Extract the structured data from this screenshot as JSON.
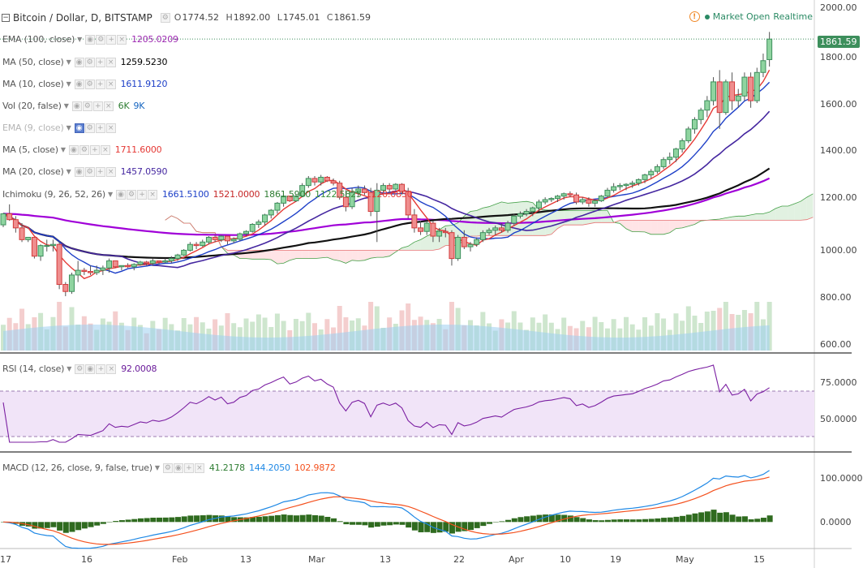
{
  "header": {
    "symbol": "Bitcoin / Dollar, D, BITSTAMP",
    "ohlc": {
      "o_label": "O",
      "o": "1774.52",
      "h_label": "H",
      "h": "1892.00",
      "l_label": "L",
      "l": "1745.01",
      "c_label": "C",
      "c": "1861.59"
    },
    "market_status": "Market Open",
    "data_mode": "Realtime",
    "warning_glyph": "!"
  },
  "indicators": [
    {
      "name": "EMA (100, close)",
      "values": [
        "1205.0209"
      ],
      "colors": [
        "#9c27b0"
      ],
      "faded": false,
      "active": false
    },
    {
      "name": "MA (50, close)",
      "values": [
        "1259.5230"
      ],
      "colors": [
        "#000000"
      ],
      "faded": false,
      "active": false
    },
    {
      "name": "MA (10, close)",
      "values": [
        "1611.9120"
      ],
      "colors": [
        "#1e40c8"
      ],
      "faded": false,
      "active": false
    },
    {
      "name": "Vol (20, false)",
      "values": [
        "6K",
        "9K"
      ],
      "colors": [
        "#2e7d32",
        "#1565c0"
      ],
      "faded": false,
      "active": false
    },
    {
      "name": "EMA (9, close)",
      "values": [],
      "colors": [],
      "faded": true,
      "active": true
    },
    {
      "name": "MA (5, close)",
      "values": [
        "1711.6000"
      ],
      "colors": [
        "#e53935"
      ],
      "faded": false,
      "active": false
    },
    {
      "name": "MA (20, close)",
      "values": [
        "1457.0590"
      ],
      "colors": [
        "#4527a0"
      ],
      "faded": false,
      "active": false
    },
    {
      "name": "Ichimoku (9, 26, 52, 26)",
      "values": [
        "1661.5100",
        "1521.0000",
        "1861.5900",
        "1122.5825",
        "1120.0850"
      ],
      "colors": [
        "#1e40c8",
        "#c62828",
        "#2e7d32",
        "#388e3c",
        "#e53935"
      ],
      "faded": false,
      "active": false
    }
  ],
  "rsi_legend": {
    "name": "RSI (14, close)",
    "value": "92.0008",
    "color": "#6a1b9a"
  },
  "macd_legend": {
    "name": "MACD (12, 26, close, 9, false, true)",
    "values": [
      "41.2178",
      "144.2050",
      "102.9872"
    ],
    "colors": [
      "#2e7d32",
      "#1e88e5",
      "#f4511e"
    ]
  },
  "price_axis_labels": [
    "2000.00",
    "1800.00",
    "1600.00",
    "1400.00",
    "1200.00",
    "1000.00",
    "800.00",
    "600.00"
  ],
  "last_price_tag": "1861.59",
  "rsi_axis_labels": [
    "75.0000",
    "50.0000"
  ],
  "macd_axis_labels": [
    "100.0000",
    "0.0000"
  ],
  "time_axis_labels": [
    "17",
    "16",
    "Feb",
    "13",
    "Mar",
    "13",
    "22",
    "Apr",
    "10",
    "19",
    "May",
    "15"
  ],
  "colors": {
    "up": "#3d8f5c",
    "down": "#d23b3b",
    "rsi_band": "#f1e4f8",
    "cloud_green": "#c8e6c9",
    "cloud_red": "#ffcdd2",
    "vol_ma": "#9fd0f0"
  },
  "chart_data": {
    "type": "candlestick",
    "title": "Bitcoin / Dollar, D, BITSTAMP",
    "ylim": [
      560,
      2000
    ],
    "candles": [
      [
        1073,
        1123,
        1063,
        1120
      ],
      [
        1120,
        1160,
        1090,
        1095
      ],
      [
        1095,
        1110,
        1040,
        1060
      ],
      [
        1060,
        1080,
        1000,
        1010
      ],
      [
        1010,
        1020,
        1000,
        1020
      ],
      [
        1020,
        1020,
        930,
        940
      ],
      [
        940,
        990,
        920,
        985
      ],
      [
        985,
        1010,
        960,
        985
      ],
      [
        985,
        1010,
        960,
        990
      ],
      [
        990,
        1000,
        800,
        820
      ],
      [
        820,
        830,
        770,
        790
      ],
      [
        790,
        870,
        780,
        860
      ],
      [
        860,
        920,
        830,
        880
      ],
      [
        880,
        890,
        860,
        875
      ],
      [
        875,
        900,
        860,
        870
      ],
      [
        870,
        900,
        860,
        880
      ],
      [
        880,
        900,
        860,
        890
      ],
      [
        890,
        930,
        870,
        920
      ],
      [
        920,
        920,
        890,
        895
      ],
      [
        895,
        900,
        880,
        900
      ],
      [
        900,
        910,
        890,
        895
      ],
      [
        895,
        910,
        880,
        905
      ],
      [
        905,
        920,
        900,
        915
      ],
      [
        915,
        920,
        900,
        910
      ],
      [
        910,
        930,
        900,
        920
      ],
      [
        920,
        920,
        905,
        915
      ],
      [
        915,
        930,
        910,
        920
      ],
      [
        920,
        940,
        910,
        930
      ],
      [
        930,
        950,
        920,
        945
      ],
      [
        945,
        970,
        940,
        965
      ],
      [
        965,
        1000,
        960,
        990
      ],
      [
        990,
        1000,
        970,
        985
      ],
      [
        985,
        1010,
        980,
        1000
      ],
      [
        1000,
        1025,
        990,
        1020
      ],
      [
        1020,
        1030,
        1000,
        1010
      ],
      [
        1010,
        1030,
        1000,
        1025
      ],
      [
        1025,
        1025,
        990,
        1005
      ],
      [
        1005,
        1020,
        995,
        1012
      ],
      [
        1012,
        1040,
        1005,
        1035
      ],
      [
        1035,
        1050,
        1025,
        1045
      ],
      [
        1045,
        1080,
        1040,
        1075
      ],
      [
        1075,
        1095,
        1060,
        1085
      ],
      [
        1085,
        1120,
        1070,
        1115
      ],
      [
        1115,
        1140,
        1100,
        1135
      ],
      [
        1135,
        1170,
        1120,
        1165
      ],
      [
        1165,
        1200,
        1150,
        1195
      ],
      [
        1195,
        1195,
        1170,
        1175
      ],
      [
        1175,
        1200,
        1170,
        1195
      ],
      [
        1195,
        1250,
        1190,
        1240
      ],
      [
        1240,
        1280,
        1230,
        1270
      ],
      [
        1270,
        1280,
        1240,
        1255
      ],
      [
        1255,
        1285,
        1240,
        1275
      ],
      [
        1275,
        1280,
        1255,
        1260
      ],
      [
        1260,
        1270,
        1240,
        1250
      ],
      [
        1250,
        1260,
        1180,
        1190
      ],
      [
        1190,
        1220,
        1130,
        1150
      ],
      [
        1150,
        1230,
        1140,
        1210
      ],
      [
        1210,
        1240,
        1190,
        1225
      ],
      [
        1225,
        1240,
        1200,
        1210
      ],
      [
        1210,
        1230,
        1110,
        1130
      ],
      [
        1130,
        1250,
        1000,
        1220
      ],
      [
        1220,
        1250,
        1200,
        1240
      ],
      [
        1240,
        1250,
        1210,
        1225
      ],
      [
        1225,
        1250,
        1220,
        1245
      ],
      [
        1245,
        1250,
        1200,
        1215
      ],
      [
        1215,
        1230,
        1100,
        1115
      ],
      [
        1115,
        1140,
        1040,
        1060
      ],
      [
        1060,
        1090,
        1030,
        1045
      ],
      [
        1045,
        1090,
        1030,
        1080
      ],
      [
        1080,
        1090,
        1000,
        1025
      ],
      [
        1025,
        1060,
        1000,
        1045
      ],
      [
        1045,
        1060,
        1020,
        1040
      ],
      [
        1040,
        1050,
        900,
        930
      ],
      [
        930,
        1030,
        920,
        1020
      ],
      [
        1020,
        1050,
        970,
        980
      ],
      [
        980,
        1000,
        960,
        990
      ],
      [
        990,
        1020,
        980,
        1010
      ],
      [
        1010,
        1050,
        1000,
        1040
      ],
      [
        1040,
        1060,
        1030,
        1050
      ],
      [
        1050,
        1070,
        1030,
        1060
      ],
      [
        1060,
        1080,
        1040,
        1050
      ],
      [
        1050,
        1090,
        1040,
        1080
      ],
      [
        1080,
        1120,
        1070,
        1110
      ],
      [
        1110,
        1130,
        1100,
        1120
      ],
      [
        1120,
        1140,
        1110,
        1130
      ],
      [
        1130,
        1150,
        1110,
        1145
      ],
      [
        1145,
        1180,
        1130,
        1170
      ],
      [
        1170,
        1190,
        1160,
        1180
      ],
      [
        1180,
        1190,
        1170,
        1185
      ],
      [
        1185,
        1200,
        1170,
        1195
      ],
      [
        1195,
        1210,
        1180,
        1205
      ],
      [
        1205,
        1215,
        1190,
        1200
      ],
      [
        1200,
        1210,
        1160,
        1170
      ],
      [
        1170,
        1190,
        1160,
        1180
      ],
      [
        1180,
        1190,
        1150,
        1165
      ],
      [
        1165,
        1180,
        1150,
        1175
      ],
      [
        1175,
        1200,
        1170,
        1195
      ],
      [
        1195,
        1230,
        1190,
        1220
      ],
      [
        1220,
        1250,
        1210,
        1235
      ],
      [
        1235,
        1250,
        1220,
        1240
      ],
      [
        1240,
        1250,
        1220,
        1245
      ],
      [
        1245,
        1260,
        1230,
        1250
      ],
      [
        1250,
        1270,
        1240,
        1265
      ],
      [
        1265,
        1290,
        1250,
        1285
      ],
      [
        1285,
        1310,
        1270,
        1300
      ],
      [
        1300,
        1330,
        1290,
        1320
      ],
      [
        1320,
        1360,
        1310,
        1350
      ],
      [
        1350,
        1380,
        1330,
        1360
      ],
      [
        1360,
        1400,
        1340,
        1395
      ],
      [
        1395,
        1440,
        1380,
        1430
      ],
      [
        1430,
        1490,
        1420,
        1480
      ],
      [
        1480,
        1530,
        1460,
        1520
      ],
      [
        1520,
        1570,
        1500,
        1560
      ],
      [
        1560,
        1620,
        1530,
        1600
      ],
      [
        1600,
        1700,
        1580,
        1680
      ],
      [
        1680,
        1730,
        1480,
        1550
      ],
      [
        1550,
        1690,
        1540,
        1680
      ],
      [
        1680,
        1720,
        1560,
        1600
      ],
      [
        1600,
        1650,
        1570,
        1620
      ],
      [
        1620,
        1720,
        1600,
        1700
      ],
      [
        1700,
        1720,
        1570,
        1600
      ],
      [
        1600,
        1740,
        1590,
        1720
      ],
      [
        1720,
        1800,
        1700,
        1770
      ],
      [
        1774.52,
        1892,
        1745.01,
        1861.59
      ]
    ]
  }
}
